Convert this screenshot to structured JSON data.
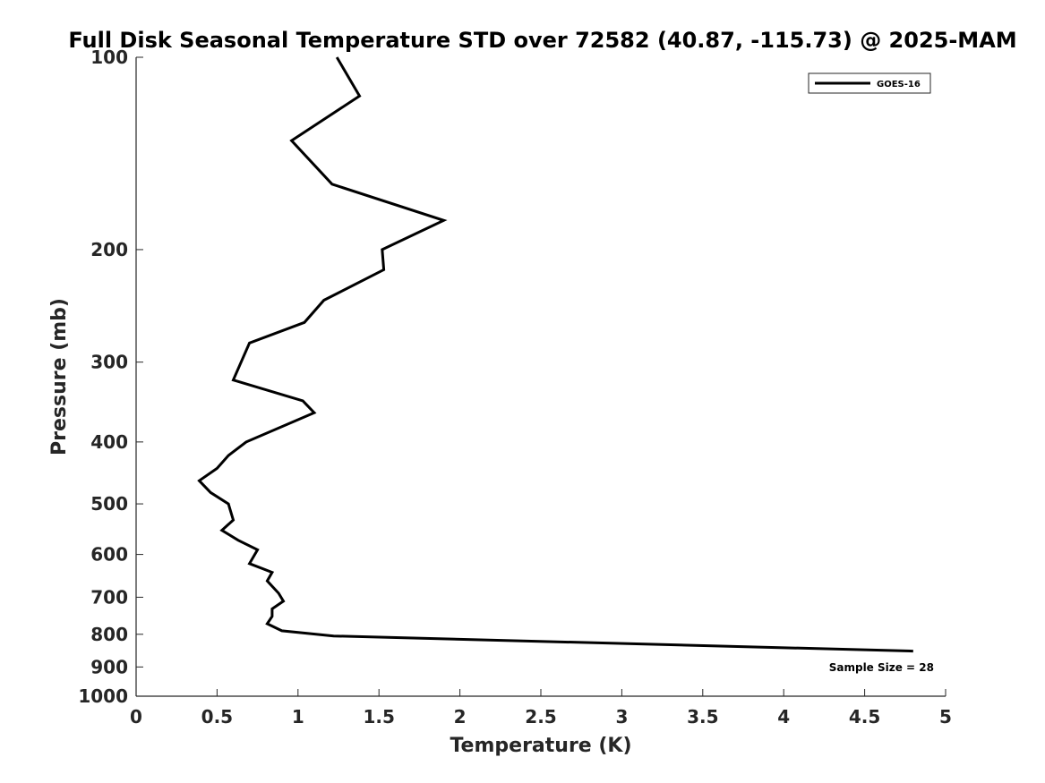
{
  "chart_data": {
    "type": "line",
    "title": "Full Disk Seasonal Temperature STD over 72582 (40.87, -115.73) @ 2025-MAM",
    "xlabel": "Temperature (K)",
    "ylabel": "Pressure (mb)",
    "xlim": [
      0,
      5
    ],
    "ylim": [
      100,
      1000
    ],
    "y_scale": "log",
    "y_reversed": true,
    "x_ticks": [
      0,
      0.5,
      1,
      1.5,
      2,
      2.5,
      3,
      3.5,
      4,
      4.5,
      5
    ],
    "x_tick_labels": [
      "0",
      "0.5",
      "1",
      "1.5",
      "2",
      "2.5",
      "3",
      "3.5",
      "4",
      "4.5",
      "5"
    ],
    "y_ticks": [
      100,
      200,
      300,
      400,
      500,
      600,
      700,
      800,
      900,
      1000
    ],
    "y_tick_labels": [
      "100",
      "200",
      "300",
      "400",
      "500",
      "600",
      "700",
      "800",
      "900",
      "1000"
    ],
    "grid": false,
    "legend_position": "top-right",
    "series": [
      {
        "name": "GOES-16",
        "color": "#000000",
        "x": [
          1.24,
          1.38,
          0.96,
          1.21,
          1.9,
          1.52,
          1.53,
          1.16,
          1.04,
          0.7,
          0.6,
          1.03,
          1.1,
          0.68,
          0.57,
          0.5,
          0.39,
          0.46,
          0.57,
          0.58,
          0.6,
          0.53,
          0.63,
          0.75,
          0.7,
          0.84,
          0.81,
          0.88,
          0.91,
          0.84,
          0.84,
          0.81,
          0.9,
          1.22,
          4.8
        ],
        "y": [
          100,
          115,
          135,
          158,
          180,
          200,
          215,
          240,
          260,
          280,
          320,
          345,
          360,
          400,
          420,
          440,
          460,
          480,
          500,
          510,
          530,
          550,
          570,
          590,
          620,
          640,
          660,
          690,
          710,
          730,
          750,
          770,
          790,
          805,
          850
        ]
      }
    ],
    "annotations": [
      "Sample Size = 28"
    ]
  }
}
